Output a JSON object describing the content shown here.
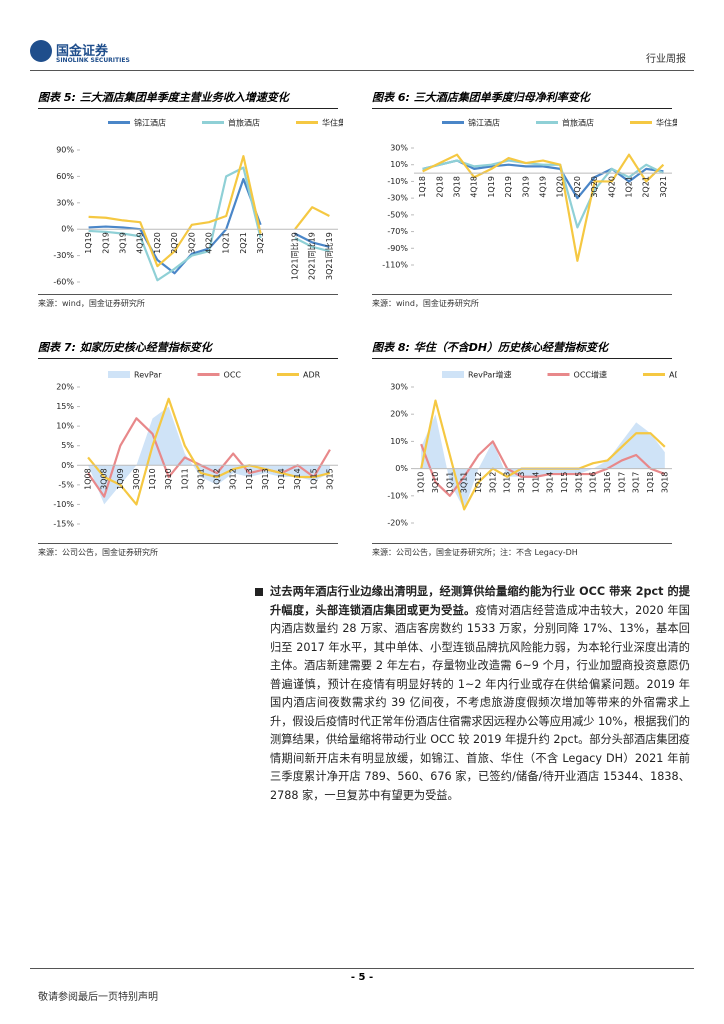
{
  "header": {
    "logo": "国金证券",
    "logo_en": "SINOLINK SECURITIES",
    "report_type": "行业周报"
  },
  "chart_data": [
    {
      "type": "line",
      "title": "图表 5:  三大酒店集团单季度主营业务收入增速变化",
      "source": "来源：wind，国金证券研究所",
      "categories": [
        "1Q19",
        "2Q19",
        "3Q19",
        "4Q19",
        "1Q20",
        "2Q20",
        "3Q20",
        "4Q20",
        "1Q21",
        "2Q21",
        "3Q21",
        null,
        "1Q21同比19",
        "2Q21同比19",
        "3Q21同比19"
      ],
      "series": [
        {
          "name": "锦江酒店",
          "color": "#4a86c8",
          "values": [
            2,
            3,
            2,
            0,
            -35,
            -50,
            -28,
            -22,
            0,
            57,
            5,
            null,
            -5,
            -15,
            -20
          ]
        },
        {
          "name": "首旅酒店",
          "color": "#8fd0d6",
          "values": [
            -2,
            -3,
            -5,
            -8,
            -58,
            -45,
            -30,
            -25,
            60,
            70,
            -10,
            null,
            -10,
            -20,
            -25
          ]
        },
        {
          "name": "华住集团-S",
          "color": "#f5c842",
          "values": [
            14,
            13,
            10,
            8,
            -42,
            -25,
            5,
            8,
            15,
            83,
            -5,
            null,
            0,
            25,
            15
          ]
        }
      ],
      "ylim": [
        -60,
        90
      ],
      "yticks": [
        {
          "value": 90,
          "label": "90%"
        },
        {
          "value": 60,
          "label": "60%"
        },
        {
          "value": 30,
          "label": "30%"
        },
        {
          "value": 0,
          "label": "0%"
        },
        {
          "value": -30,
          "label": "-30%"
        },
        {
          "value": -60,
          "label": "-60%"
        }
      ]
    },
    {
      "type": "line",
      "title": "图表 6:  三大酒店集团单季度归母净利率变化",
      "source": "来源：wind，国金证券研究所",
      "categories": [
        "1Q18",
        "2Q18",
        "3Q18",
        "4Q18",
        "1Q19",
        "2Q19",
        "3Q19",
        "4Q19",
        "1Q20",
        "2Q20",
        "3Q20",
        "4Q20",
        "1Q21",
        "2Q21",
        "3Q21"
      ],
      "series": [
        {
          "name": "锦江酒店",
          "color": "#4a86c8",
          "values": [
            5,
            10,
            15,
            5,
            8,
            10,
            8,
            8,
            5,
            -30,
            -5,
            5,
            -10,
            5,
            2
          ]
        },
        {
          "name": "首旅酒店",
          "color": "#8fd0d6",
          "values": [
            5,
            10,
            15,
            8,
            10,
            15,
            12,
            10,
            10,
            -65,
            -20,
            5,
            -5,
            10,
            0
          ]
        },
        {
          "name": "华住集团-S",
          "color": "#f5c842",
          "values": [
            2,
            12,
            22,
            -5,
            5,
            18,
            12,
            15,
            10,
            -105,
            -10,
            -10,
            22,
            -10,
            10
          ]
        }
      ],
      "ylim": [
        -110,
        30
      ],
      "yticks": [
        {
          "value": 30,
          "label": "30%"
        },
        {
          "value": 10,
          "label": "10%"
        },
        {
          "value": -10,
          "label": "-10%"
        },
        {
          "value": -30,
          "label": "-30%"
        },
        {
          "value": -50,
          "label": "-50%"
        },
        {
          "value": -70,
          "label": "-70%"
        },
        {
          "value": -90,
          "label": "-90%"
        },
        {
          "value": -110,
          "label": "-110%"
        }
      ]
    },
    {
      "type": "line",
      "title": "图表 7:  如家历史核心经营指标变化",
      "source": "来源：公司公告，国金证券研究所",
      "categories": [
        "1Q08",
        "3Q08",
        "1Q09",
        "3Q09",
        "1Q10",
        "3Q10",
        "1Q11",
        "3Q11",
        "1Q12",
        "3Q12",
        "1Q13",
        "3Q13",
        "1Q14",
        "3Q14",
        "1Q15",
        "3Q15"
      ],
      "series": [
        {
          "name": "RevPar",
          "color": "#cfe3f7",
          "kind": "area",
          "values": [
            0,
            -10,
            -5,
            0,
            12,
            15,
            3,
            -3,
            -5,
            -2,
            -3,
            -2,
            -3,
            -3,
            -4,
            -2
          ]
        },
        {
          "name": "OCC",
          "color": "#e8888a",
          "values": [
            -2,
            -8,
            5,
            12,
            8,
            -3,
            2,
            0,
            -2,
            3,
            -2,
            -1,
            -2,
            0,
            -3,
            4
          ]
        },
        {
          "name": "ADR",
          "color": "#f5c842",
          "values": [
            2,
            -3,
            -5,
            -10,
            5,
            17,
            5,
            -2,
            -3,
            -1,
            0,
            -1,
            -2,
            -3,
            -3,
            -2
          ]
        }
      ],
      "ylim": [
        -15,
        20
      ],
      "yticks": [
        {
          "value": 20,
          "label": "20%"
        },
        {
          "value": 15,
          "label": "15%"
        },
        {
          "value": 10,
          "label": "10%"
        },
        {
          "value": 5,
          "label": "5%"
        },
        {
          "value": 0,
          "label": "0%"
        },
        {
          "value": -5,
          "label": "-5%"
        },
        {
          "value": -10,
          "label": "-10%"
        },
        {
          "value": -15,
          "label": "-15%"
        }
      ]
    },
    {
      "type": "line",
      "title": "图表 8:  华住（不含DH）历史核心经营指标变化",
      "source": "来源：公司公告，国金证券研究所；注：不含 Legacy-DH",
      "categories": [
        "1Q10",
        "3Q10",
        "1Q11",
        "3Q11",
        "1Q12",
        "3Q12",
        "1Q13",
        "3Q13",
        "1Q14",
        "3Q14",
        "1Q15",
        "3Q15",
        "1Q16",
        "3Q16",
        "1Q17",
        "3Q17",
        "1Q18",
        "3Q18"
      ],
      "series": [
        {
          "name": "RevPar增速",
          "color": "#cfe3f7",
          "kind": "area",
          "values": [
            8,
            20,
            -5,
            -15,
            0,
            10,
            -3,
            -3,
            -3,
            -2,
            -2,
            -2,
            0,
            3,
            10,
            17,
            13,
            6
          ]
        },
        {
          "name": "OCC增速",
          "color": "#e8888a",
          "values": [
            9,
            -5,
            -10,
            -3,
            5,
            10,
            0,
            -3,
            -3,
            -2,
            -2,
            -2,
            -2,
            0,
            3,
            5,
            0,
            -2
          ]
        },
        {
          "name": "ADR增速",
          "color": "#f5c842",
          "values": [
            0,
            25,
            5,
            -15,
            -5,
            0,
            -3,
            0,
            0,
            0,
            0,
            0,
            2,
            3,
            8,
            13,
            13,
            8
          ]
        }
      ],
      "ylim": [
        -20,
        30
      ],
      "yticks": [
        {
          "value": 30,
          "label": "30%"
        },
        {
          "value": 20,
          "label": "20%"
        },
        {
          "value": 10,
          "label": "10%"
        },
        {
          "value": 0,
          "label": "0%"
        },
        {
          "value": -10,
          "label": "-10%"
        },
        {
          "value": -20,
          "label": "-20%"
        }
      ]
    }
  ],
  "body": {
    "lead": "过去两年酒店行业边缘出清明显，经测算供给量缩约能为行业 OCC 带来 2pct 的提升幅度，头部连锁酒店集团或更为受益。",
    "text": "疫情对酒店经营造成冲击较大，2020 年国内酒店数量约 28 万家、酒店客房数约 1533 万家，分别同降 17%、13%，基本回归至 2017 年水平，其中单体、小型连锁品牌抗风险能力弱，为本轮行业深度出清的主体。酒店新建需要 2 年左右，存量物业改造需 6~9 个月，行业加盟商投资意愿仍普遍谨慎，预计在疫情有明显好转的 1~2 年内行业或存在供给偏紧问题。2019 年国内酒店间夜数需求约 39 亿间夜，不考虑旅游度假频次增加等带来的外宿需求上升，假设后疫情时代正常年份酒店住宿需求因远程办公等应用减少 10%，根据我们的测算结果，供给量缩将带动行业 OCC 较 2019 年提升约 2pct。部分头部酒店集团疫情期间新开店未有明显放缓，如锦江、首旅、华住（不含 Legacy DH）2021 年前三季度累计净开店 789、560、676 家，已签约/储备/待开业酒店 15344、1838、2788 家，一旦复苏中有望更为受益。"
  },
  "footer": {
    "page": "- 5 -",
    "disclaimer": "敬请参阅最后一页特别声明"
  }
}
